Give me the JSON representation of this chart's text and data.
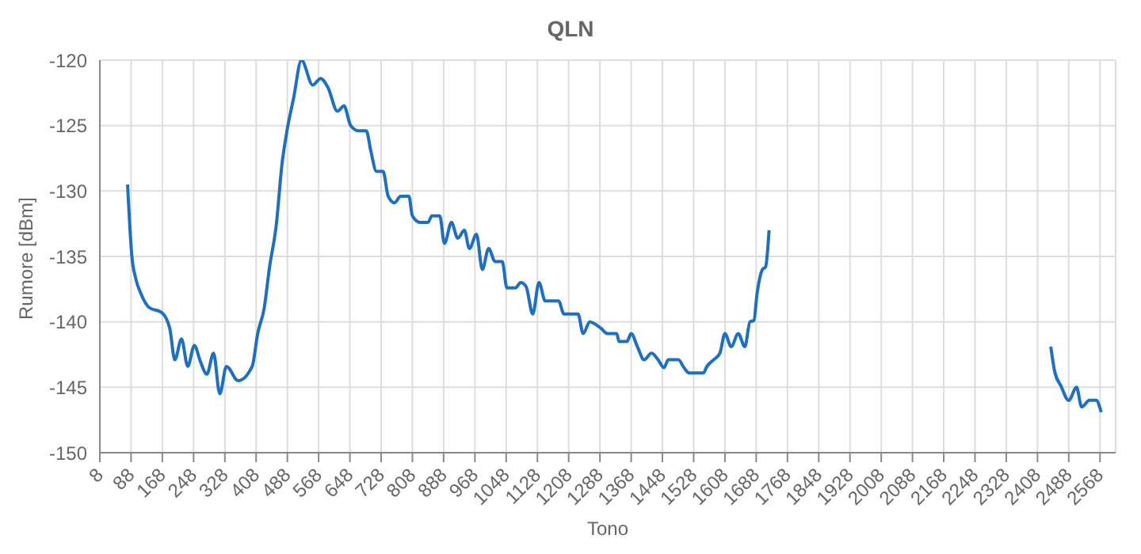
{
  "chart_data": {
    "type": "line",
    "title": "QLN",
    "xlabel": "Tono",
    "ylabel": "Rumore [dBm]",
    "x": [
      79,
      90,
      100,
      114,
      134,
      167,
      187,
      200,
      217,
      233,
      250,
      265,
      282,
      299,
      315,
      332,
      362,
      398,
      412,
      429,
      442,
      460,
      474,
      487,
      504,
      524,
      553,
      573,
      592,
      616,
      633,
      650,
      670,
      690,
      702,
      716,
      733,
      746,
      762,
      778,
      799,
      808,
      828,
      848,
      858,
      878,
      890,
      908,
      924,
      941,
      954,
      972,
      987,
      1003,
      1020,
      1038,
      1050,
      1072,
      1085,
      1099,
      1116,
      1132,
      1148,
      1182,
      1196,
      1232,
      1245,
      1262,
      1291,
      1307,
      1331,
      1337,
      1357,
      1368,
      1384,
      1401,
      1420,
      1437,
      1452,
      1463,
      1489,
      1503,
      1516,
      1553,
      1562,
      1579,
      1595,
      1608,
      1624,
      1642,
      1659,
      1672,
      1682,
      1690,
      1704,
      1712,
      1721,
      2000,
      2442,
      2452,
      2468,
      2488,
      2508,
      2521,
      2541,
      2558,
      2571
    ],
    "series": [
      {
        "color": "#1f6fbf",
        "values": [
          -129.5,
          -135,
          -136.7,
          -137.9,
          -138.9,
          -139.3,
          -140.5,
          -142.9,
          -141.3,
          -143.4,
          -141.8,
          -143,
          -144,
          -142.4,
          -145.5,
          -143.4,
          -144.5,
          -143.4,
          -140.9,
          -138.9,
          -135.9,
          -132.5,
          -128,
          -125.4,
          -122.9,
          -120,
          -121.9,
          -121.4,
          -122.1,
          -123.9,
          -123.5,
          -125,
          -125.4,
          -125.4,
          -127,
          -128.5,
          -128.5,
          -130.4,
          -130.9,
          -130.4,
          -130.4,
          -131.9,
          -132.4,
          -132.4,
          -131.9,
          -131.9,
          -134,
          -132.4,
          -133.6,
          -133,
          -134.4,
          -133.3,
          -136,
          -134.4,
          -135.4,
          -135.4,
          -137.4,
          -137.4,
          -137,
          -137.3,
          -139.4,
          -137,
          -138.4,
          -138.4,
          -139.4,
          -139.4,
          -140.9,
          -140,
          -140.5,
          -140.9,
          -140.9,
          -141.5,
          -141.5,
          -140.9,
          -141.9,
          -142.9,
          -142.4,
          -142.9,
          -143.5,
          -142.9,
          -142.9,
          -143.5,
          -143.9,
          -143.9,
          -143.4,
          -142.9,
          -142.4,
          -140.9,
          -141.9,
          -140.9,
          -141.9,
          -140,
          -139.9,
          -137.9,
          -136,
          -135.8,
          -133,
          null,
          -141.9,
          -143.8,
          -144.9,
          -146,
          -145,
          -146.5,
          -146,
          -146,
          -146.9
        ]
      }
    ],
    "xlim": [
      8,
      2608
    ],
    "xticks": [
      8,
      88,
      168,
      248,
      328,
      408,
      488,
      568,
      648,
      728,
      808,
      888,
      968,
      1048,
      1128,
      1208,
      1288,
      1368,
      1448,
      1528,
      1608,
      1688,
      1768,
      1848,
      1928,
      2008,
      2088,
      2168,
      2248,
      2328,
      2408,
      2488,
      2568
    ],
    "ylim": [
      -150,
      -120
    ],
    "yticks": [
      -150,
      -145,
      -140,
      -135,
      -130,
      -125,
      -120
    ],
    "grid": true,
    "legend": false,
    "marker": "none",
    "line_style": "solid"
  }
}
